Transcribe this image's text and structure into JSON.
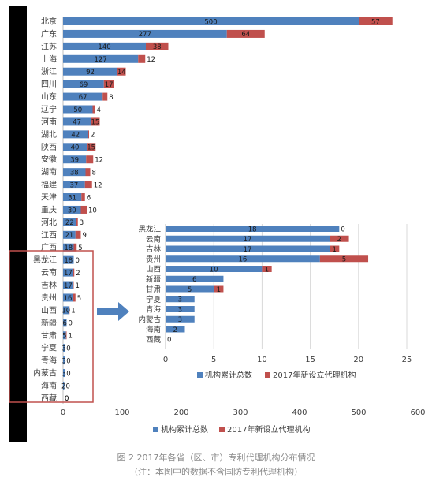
{
  "colors": {
    "cumulative": "#4f81bd",
    "new_2017": "#c0504d",
    "axis_text": "#404040",
    "grid": "#d9d9d9",
    "highlight_box": "#c0504d",
    "arrow": "#4f81bd",
    "left_strip": "#000000"
  },
  "legend": {
    "cumulative": "机构累计总数",
    "new_2017": "2017年新设立代理机构"
  },
  "caption": {
    "line1": "图 2 2017年各省（区、市）专利代理机构分布情况",
    "line2": "（注：本图中的数据不含国防专利代理机构）"
  },
  "chart_data": [
    {
      "type": "bar",
      "orientation": "horizontal",
      "stacked": true,
      "categories": [
        "北京",
        "广东",
        "江苏",
        "上海",
        "浙江",
        "四川",
        "山东",
        "辽宁",
        "河南",
        "湖北",
        "陕西",
        "安徽",
        "湖南",
        "福建",
        "天津",
        "重庆",
        "河北",
        "江西",
        "广西",
        "黑龙江",
        "云南",
        "吉林",
        "贵州",
        "山西",
        "新疆",
        "甘肃",
        "宁夏",
        "青海",
        "内蒙古",
        "海南",
        "西藏"
      ],
      "series": [
        {
          "name": "机构累计总数",
          "values": [
            500,
            277,
            140,
            127,
            92,
            69,
            67,
            50,
            47,
            42,
            40,
            39,
            38,
            37,
            31,
            30,
            22,
            21,
            18,
            18,
            17,
            17,
            16,
            10,
            6,
            5,
            3,
            3,
            3,
            2,
            0
          ],
          "labels": [
            "500",
            "277",
            "140",
            "127",
            "92",
            "69",
            "67",
            "50",
            "47",
            "42",
            "40",
            "39",
            "38",
            "37",
            "31",
            "30",
            "22",
            "21",
            "18",
            "18",
            "17",
            "17",
            "16",
            "10",
            "6",
            "5",
            "3",
            "3",
            "3",
            "2",
            "0"
          ]
        },
        {
          "name": "2017年新设立代理机构",
          "values": [
            57,
            64,
            38,
            12,
            14,
            17,
            8,
            4,
            15,
            2,
            15,
            12,
            8,
            12,
            6,
            10,
            3,
            9,
            5,
            0,
            2,
            1,
            5,
            1,
            0,
            1,
            0,
            0,
            0,
            0,
            0
          ],
          "labels": [
            "57",
            "64",
            "38",
            "12",
            "14",
            "17",
            "8",
            "4",
            "15",
            "2",
            "15",
            "12",
            "8",
            "12",
            "6",
            "10",
            "3",
            "9",
            "5",
            "0",
            "2",
            "1",
            "5",
            "1",
            "0",
            "1",
            "0",
            "0",
            "0",
            "0",
            "0"
          ]
        }
      ],
      "xlim": [
        0,
        600
      ],
      "xticks": [
        0,
        100,
        200,
        300,
        400,
        500,
        600
      ],
      "grid": false,
      "legend_position": "bottom"
    },
    {
      "type": "bar",
      "orientation": "horizontal",
      "stacked": true,
      "categories": [
        "黑龙江",
        "云南",
        "吉林",
        "贵州",
        "山西",
        "新疆",
        "甘肃",
        "宁夏",
        "青海",
        "内蒙古",
        "海南",
        "西藏"
      ],
      "series": [
        {
          "name": "机构累计总数",
          "values": [
            18,
            17,
            17,
            16,
            10,
            6,
            5,
            3,
            3,
            3,
            2,
            0
          ],
          "labels": [
            "18",
            "17",
            "17",
            "16",
            "10",
            "6",
            "5",
            "3",
            "3",
            "3",
            "2",
            "0"
          ]
        },
        {
          "name": "2017年新设立代理机构",
          "values": [
            0,
            2,
            1,
            5,
            1,
            0,
            1,
            0,
            0,
            0,
            0,
            0
          ],
          "labels": [
            "0",
            "2",
            "1",
            "5",
            "1",
            "",
            "1",
            "",
            "",
            "",
            "",
            ""
          ]
        }
      ],
      "xlim": [
        0,
        25
      ],
      "xticks": [
        0,
        5,
        10,
        15,
        20,
        25
      ],
      "grid": true,
      "legend_position": "bottom"
    }
  ]
}
